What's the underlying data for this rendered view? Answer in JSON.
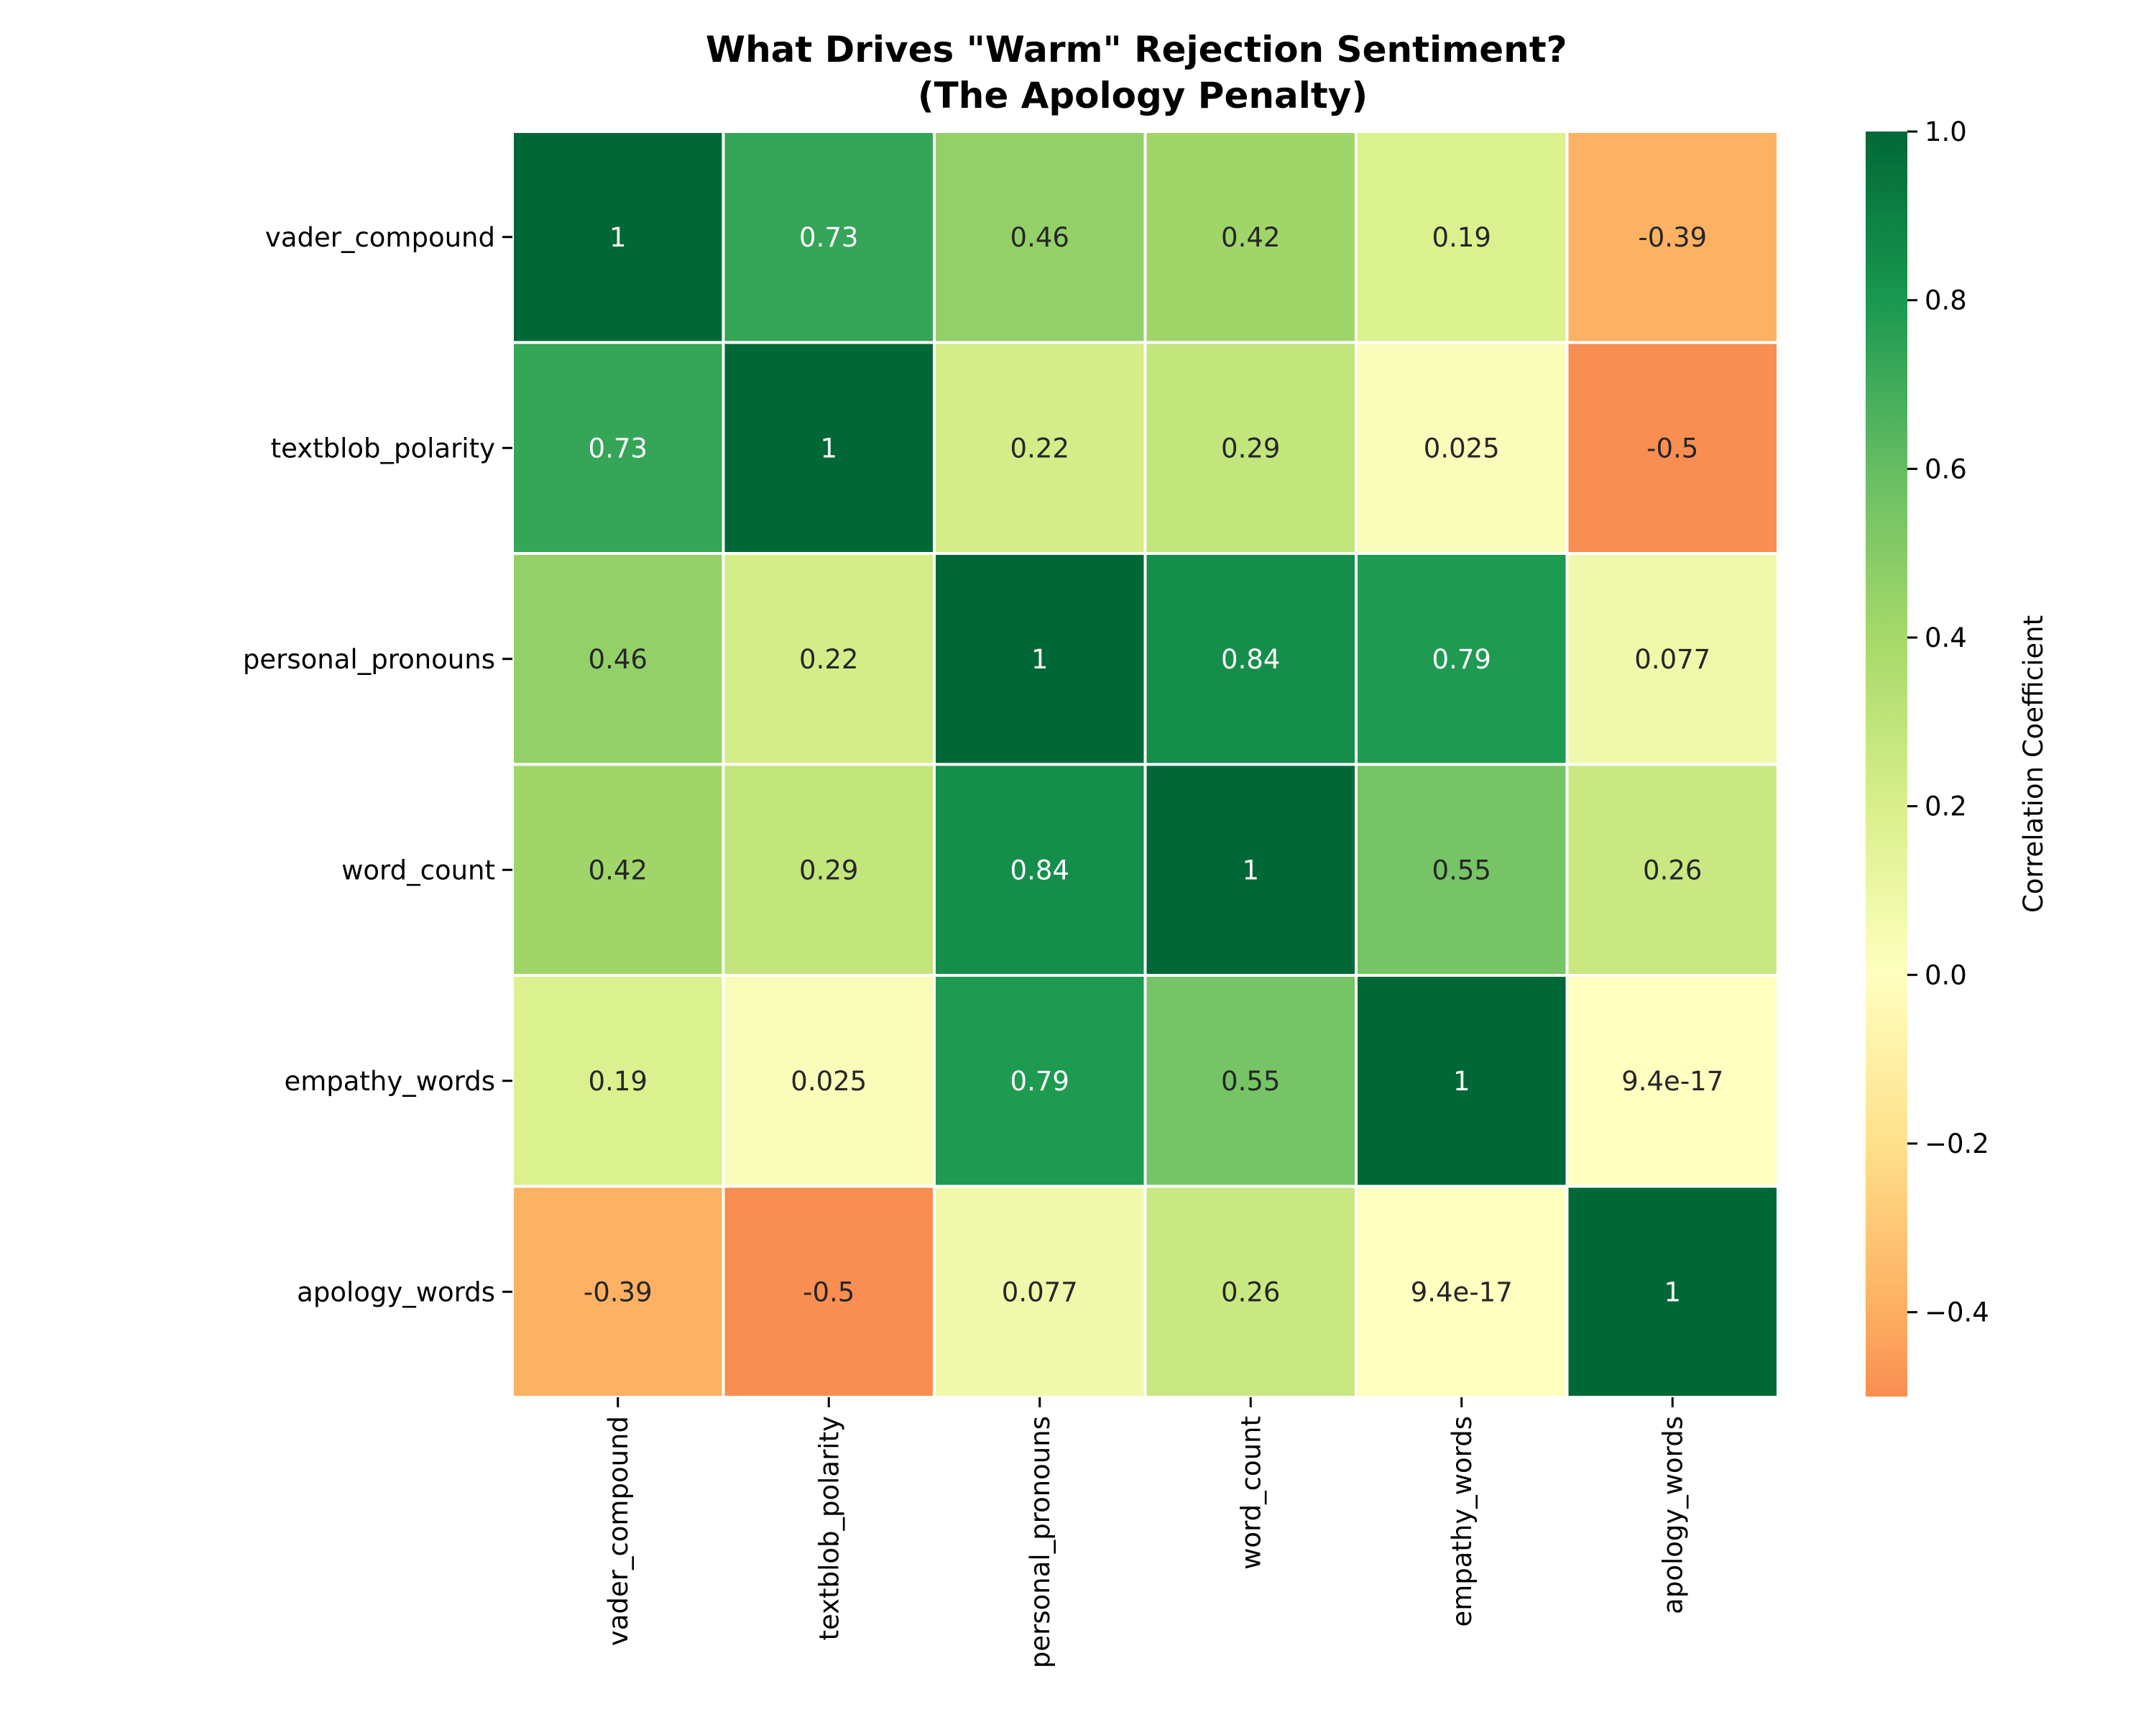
{
  "chart_data": {
    "type": "heatmap",
    "title": "What Drives \"Warm\" Rejection Sentiment?\n(The Apology Penalty)",
    "x_categories": [
      "vader_compound",
      "textblob_polarity",
      "personal_pronouns",
      "word_count",
      "empathy_words",
      "apology_words"
    ],
    "y_categories": [
      "vader_compound",
      "textblob_polarity",
      "personal_pronouns",
      "word_count",
      "empathy_words",
      "apology_words"
    ],
    "values": [
      [
        1,
        0.73,
        0.46,
        0.42,
        0.19,
        -0.39
      ],
      [
        0.73,
        1,
        0.22,
        0.29,
        0.025,
        -0.5
      ],
      [
        0.46,
        0.22,
        1,
        0.84,
        0.79,
        0.077
      ],
      [
        0.42,
        0.29,
        0.84,
        1,
        0.55,
        0.26
      ],
      [
        0.19,
        0.025,
        0.79,
        0.55,
        1,
        9.4e-17
      ],
      [
        -0.39,
        -0.5,
        0.077,
        0.26,
        9.4e-17,
        1
      ]
    ],
    "cell_labels": [
      [
        "1",
        "0.73",
        "0.46",
        "0.42",
        "0.19",
        "-0.39"
      ],
      [
        "0.73",
        "1",
        "0.22",
        "0.29",
        "0.025",
        "-0.5"
      ],
      [
        "0.46",
        "0.22",
        "1",
        "0.84",
        "0.79",
        "0.077"
      ],
      [
        "0.42",
        "0.29",
        "0.84",
        "1",
        "0.55",
        "0.26"
      ],
      [
        "0.19",
        "0.025",
        "0.79",
        "0.55",
        "1",
        "9.4e-17"
      ],
      [
        "-0.39",
        "-0.5",
        "0.077",
        "0.26",
        "9.4e-17",
        "1"
      ]
    ],
    "colormap": "RdYlGn",
    "vmin": -0.5,
    "vmax": 1.0,
    "center": 0,
    "colorbar": {
      "label": "Correlation Coefficient",
      "ticks": [
        1.0,
        0.8,
        0.6,
        0.4,
        0.2,
        0.0,
        -0.2,
        -0.4
      ],
      "tick_labels": [
        "1.0",
        "0.8",
        "0.6",
        "0.4",
        "0.2",
        "0.0",
        "−0.2",
        "−0.4"
      ]
    },
    "grid": false,
    "cell_border_color": "#ffffff"
  }
}
